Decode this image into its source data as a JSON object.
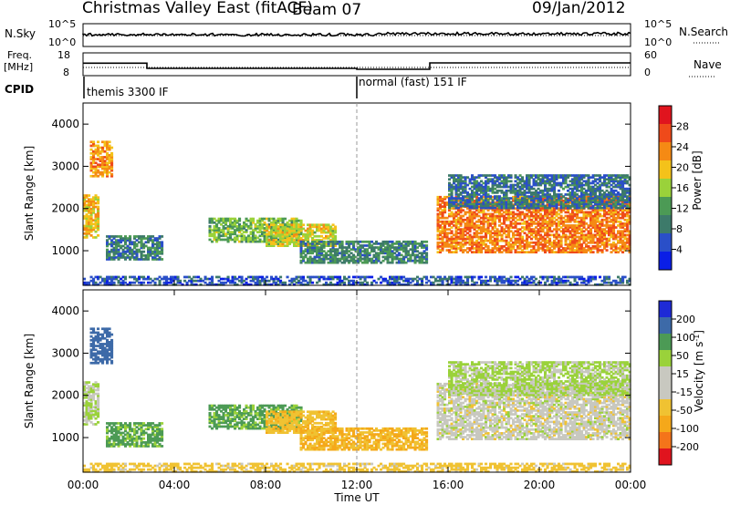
{
  "header": {
    "title": "Christmas Valley East (fitACF)",
    "beam": "Beam 07",
    "date": "09/Jan/2012"
  },
  "top_panels": {
    "nsky_label": "N.Sky",
    "nsky_ticks": [
      "10^5",
      "10^0"
    ],
    "nsearch_label": "N.Search",
    "freq_label_1": "Freq.",
    "freq_label_2": "[MHz]",
    "freq_ticks": [
      "18",
      "8"
    ],
    "nave_label": "Nave",
    "nave_ticks": [
      "60",
      "0"
    ],
    "cpid_label": "CPID",
    "cpid_segments": [
      {
        "label": "themis 3300 IF",
        "start_hour": 0,
        "end_hour": 12
      },
      {
        "label": "normal (fast) 151 IF",
        "start_hour": 12,
        "end_hour": 24
      }
    ]
  },
  "colorbars": {
    "power": {
      "label": "Power [dB]",
      "ticks": [
        "28",
        "24",
        "20",
        "16",
        "12",
        "8",
        "4"
      ]
    },
    "velocity": {
      "label_main": "Velocity [m s",
      "label_sup": "-1",
      "label_end": "]",
      "ticks": [
        "200",
        "100",
        "50",
        "15",
        "-15",
        "-50",
        "-100",
        "-200"
      ]
    }
  },
  "chart_data": {
    "type": "heatmap",
    "x_axis": {
      "label": "Time UT",
      "range_hours": [
        0,
        24
      ],
      "tick_labels": [
        "00:00",
        "04:00",
        "08:00",
        "12:00",
        "16:00",
        "20:00",
        "00:00"
      ]
    },
    "y_axis": {
      "label": "Slant Range [km]",
      "range_km": [
        180,
        4500
      ],
      "tick_labels": [
        "4000",
        "3000",
        "2000",
        "1000"
      ]
    },
    "freq_mhz": [
      {
        "start_hour": 0,
        "end_hour": 2.8,
        "value": 13.5
      },
      {
        "start_hour": 2.8,
        "end_hour": 12,
        "value": 11.2
      },
      {
        "start_hour": 12,
        "end_hour": 15.2,
        "value": 10.8
      },
      {
        "start_hour": 15.2,
        "end_hour": 24,
        "value": 13.6
      }
    ],
    "echo_regions": [
      {
        "t0": 0.0,
        "t1": 0.7,
        "r0": 1300,
        "r1": 2300,
        "power": 20,
        "vel": 15
      },
      {
        "t0": 0.3,
        "t1": 1.3,
        "r0": 2750,
        "r1": 3600,
        "power": 22,
        "vel": 180
      },
      {
        "t0": 1.0,
        "t1": 3.5,
        "r0": 780,
        "r1": 1350,
        "power": 9,
        "vel": 60
      },
      {
        "t0": 5.5,
        "t1": 9.5,
        "r0": 1200,
        "r1": 1750,
        "power": 14,
        "vel": 60
      },
      {
        "t0": 8.0,
        "t1": 11.0,
        "r0": 1100,
        "r1": 1600,
        "power": 18,
        "vel": -40
      },
      {
        "t0": 9.5,
        "t1": 15.0,
        "r0": 700,
        "r1": 1200,
        "power": 10,
        "vel": -50
      },
      {
        "t0": 15.5,
        "t1": 24.0,
        "r0": 950,
        "r1": 2300,
        "power": 24,
        "vel": 0
      },
      {
        "t0": 16.0,
        "t1": 24.0,
        "r0": 2000,
        "r1": 2800,
        "power": 8,
        "vel": 20
      },
      {
        "t0": 0.0,
        "t1": 24.0,
        "r0": 180,
        "r1": 400,
        "power": 6,
        "vel": -30
      }
    ]
  }
}
